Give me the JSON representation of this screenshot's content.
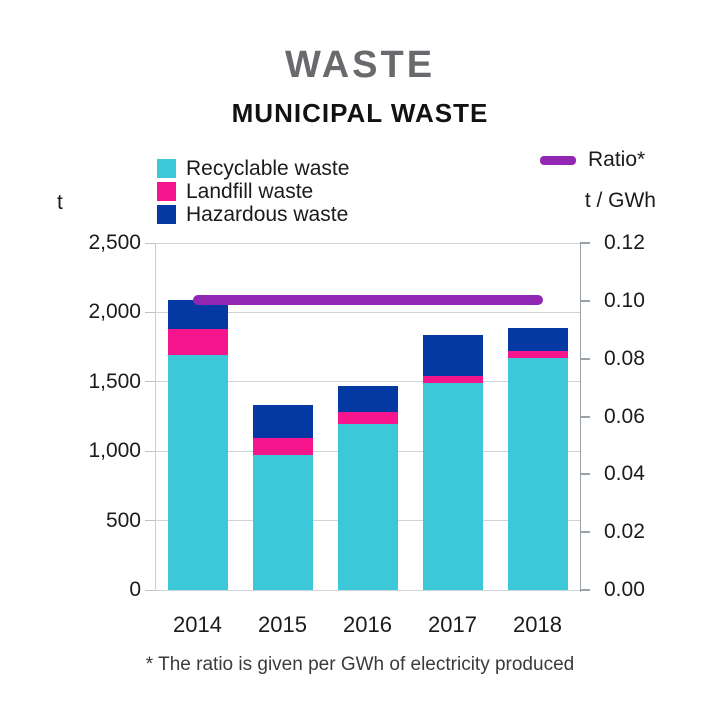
{
  "header": {
    "title": "WASTE",
    "subtitle": "MUNICIPAL WASTE"
  },
  "legend": {
    "series": [
      {
        "label": "Recyclable waste",
        "color": "#3cc8d9"
      },
      {
        "label": "Landfill waste",
        "color": "#f7158e"
      },
      {
        "label": "Hazardous waste",
        "color": "#0439a4"
      }
    ],
    "ratio_label": "Ratio*",
    "ratio_color": "#9127b2"
  },
  "axes": {
    "left_unit": "t",
    "right_unit": "t / GWh",
    "left_tick_labels": [
      "2,500",
      "2,000",
      "1,500",
      "1,000",
      "500",
      "0"
    ],
    "right_tick_labels": [
      "0.12",
      "0.10",
      "0.08",
      "0.06",
      "0.04",
      "0.02",
      "0.00"
    ]
  },
  "chart_data": {
    "type": "bar",
    "stacked": true,
    "categories": [
      "2014",
      "2015",
      "2016",
      "2017",
      "2018"
    ],
    "series": [
      {
        "name": "Recyclable waste",
        "color": "#3cc8d9",
        "values": [
          1690,
          970,
          1195,
          1490,
          1670
        ]
      },
      {
        "name": "Landfill waste",
        "color": "#f7158e",
        "values": [
          190,
          125,
          85,
          50,
          50
        ]
      },
      {
        "name": "Hazardous waste",
        "color": "#0439a4",
        "values": [
          210,
          235,
          190,
          295,
          170
        ]
      }
    ],
    "totals": [
      2090,
      1330,
      1470,
      1835,
      1890
    ],
    "line_series": {
      "name": "Ratio*",
      "color": "#9127b2",
      "axis": "right",
      "values": [
        0.1,
        0.1,
        0.1,
        0.1,
        0.1
      ]
    },
    "title": "WASTE",
    "subtitle": "MUNICIPAL WASTE",
    "left_axis": {
      "label": "t",
      "min": 0,
      "max": 2500,
      "tick_step": 500
    },
    "right_axis": {
      "label": "t / GWh",
      "min": 0,
      "max": 0.12,
      "tick_step": 0.02
    },
    "grid": "horizontal",
    "legend_position": "top"
  },
  "footnote": "* The ratio is given per GWh of electricity produced"
}
